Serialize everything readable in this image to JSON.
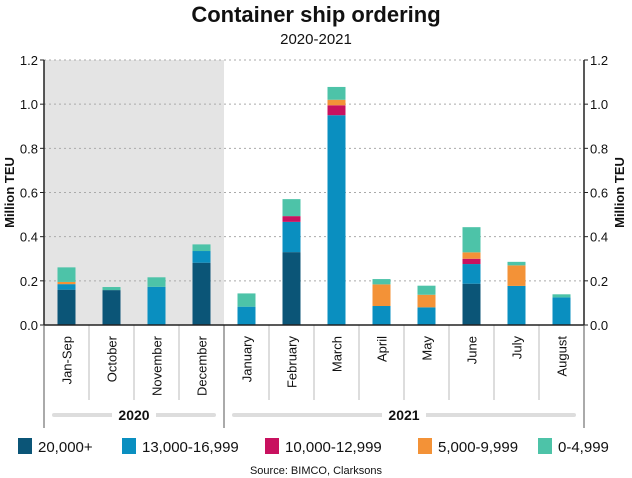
{
  "chart_data": {
    "type": "bar",
    "stacked": true,
    "title": "Container ship ordering",
    "subtitle": "2020-2021",
    "ylabel": "Million TEU",
    "ylim": [
      0,
      1.2
    ],
    "yticks": [
      "0.0",
      "0.2",
      "0.4",
      "0.6",
      "0.8",
      "1.0",
      "1.2"
    ],
    "grid": true,
    "categories": [
      "Jan-Sep",
      "October",
      "November",
      "December",
      "January",
      "February",
      "March",
      "April",
      "May",
      "June",
      "July",
      "August"
    ],
    "groups": [
      {
        "label": "2020",
        "from": 0,
        "to": 3,
        "shaded": true
      },
      {
        "label": "2021",
        "from": 4,
        "to": 11,
        "shaded": false
      }
    ],
    "series": [
      {
        "name": "20,000+",
        "color": "#0b5577",
        "values": [
          0.16,
          0.158,
          0,
          0.282,
          0,
          0.33,
          0,
          0,
          0,
          0.187,
          0,
          0
        ]
      },
      {
        "name": "13,000-16,999",
        "color": "#0a8fc0",
        "values": [
          0.025,
          0,
          0.173,
          0.053,
          0.083,
          0.137,
          0.95,
          0.086,
          0.08,
          0.089,
          0.177,
          0.125
        ]
      },
      {
        "name": "10,000-12,999",
        "color": "#c8115f",
        "values": [
          0,
          0,
          0,
          0,
          0,
          0.026,
          0.045,
          0,
          0,
          0.024,
          0,
          0
        ]
      },
      {
        "name": "5,000-9,999",
        "color": "#f39237",
        "values": [
          0.01,
          0,
          0,
          0,
          0,
          0,
          0.025,
          0.098,
          0.057,
          0.029,
          0.093,
          0
        ]
      },
      {
        "name": "0-4,999",
        "color": "#4dc3a8",
        "values": [
          0.066,
          0.014,
          0.043,
          0.03,
          0.06,
          0.077,
          0.058,
          0.024,
          0.041,
          0.114,
          0.016,
          0.014
        ]
      }
    ],
    "legend": "bottom",
    "source": "Source: BIMCO, Clarksons"
  }
}
